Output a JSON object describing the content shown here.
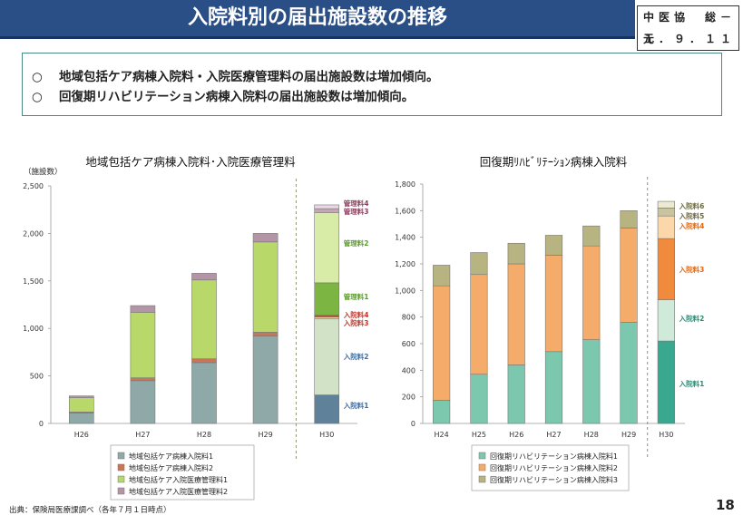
{
  "header": {
    "title": "入院料別の届出施設数の推移",
    "doc_id_line1": "中医協　総－１",
    "doc_id_line2": "元．９．１１"
  },
  "summary": {
    "bullet": "○",
    "items": [
      "地域包括ケア病棟入院料・入院医療管理料の届出施設数は増加傾向。",
      "回復期リハビリテーション病棟入院料の届出施設数は増加傾向。"
    ]
  },
  "footer": {
    "source": "出典：保険局医療課調べ（各年７月１日時点）",
    "page_number": "18"
  },
  "chart_data": [
    {
      "type": "bar",
      "stacked": true,
      "title": "地域包括ケア病棟入院料･入院医療管理料",
      "ylabel": "（施設数）",
      "ylim": [
        0,
        2500
      ],
      "yticks": [
        0,
        500,
        1000,
        1500,
        2000,
        2500
      ],
      "ytick_labels": [
        "0",
        "500",
        "1,000",
        "1,500",
        "2,000",
        "2,500"
      ],
      "categories": [
        "H26",
        "H27",
        "H28",
        "H29",
        "H30"
      ],
      "series": [
        {
          "name": "地域包括ケア病棟入院料1",
          "color": "#8fa9a8",
          "values": [
            110,
            450,
            640,
            920,
            0
          ]
        },
        {
          "name": "地域包括ケア病棟入院料2",
          "color": "#c8765a",
          "values": [
            10,
            30,
            40,
            40,
            0
          ]
        },
        {
          "name": "地域包括ケア入院医療管理料1",
          "color": "#b8d86a",
          "values": [
            150,
            690,
            830,
            950,
            0
          ]
        },
        {
          "name": "地域包括ケア入院医療管理料2",
          "color": "#b495a5",
          "values": [
            20,
            70,
            70,
            90,
            0
          ]
        }
      ],
      "h30_series": [
        {
          "name": "入院料1",
          "color": "#5f8199",
          "value": 300
        },
        {
          "name": "入院料2",
          "color": "#d2e2c7",
          "value": 800
        },
        {
          "name": "入院料3",
          "color": "#f0cba5",
          "value": 20
        },
        {
          "name": "入院料4",
          "color": "#a55a45",
          "value": 20
        },
        {
          "name": "管理料1",
          "color": "#7db542",
          "value": 340
        },
        {
          "name": "管理料2",
          "color": "#d8eca8",
          "value": 740
        },
        {
          "name": "管理料3",
          "color": "#c9a4b7",
          "value": 40
        },
        {
          "name": "管理料4",
          "color": "#e7d8e1",
          "value": 40
        }
      ],
      "h30_label_colors": {
        "入院料": "#3f6ea0",
        "入院料4": "#c0392b",
        "入院料3": "#c0392b",
        "管理料": "#5b9b2c",
        "管理料4": "#8c3b5e",
        "管理料3": "#8c3b5e"
      },
      "legend": [
        "地域包括ケア病棟入院料1",
        "地域包括ケア病棟入院料2",
        "地域包括ケア入院医療管理料1",
        "地域包括ケア入院医療管理料2"
      ]
    },
    {
      "type": "bar",
      "stacked": true,
      "title": "回復期ﾘﾊﾋﾞﾘﾃｰｼｮﾝ病棟入院料",
      "ylim": [
        0,
        1800
      ],
      "yticks": [
        0,
        200,
        400,
        600,
        800,
        1000,
        1200,
        1400,
        1600,
        1800
      ],
      "ytick_labels": [
        "0",
        "200",
        "400",
        "600",
        "800",
        "1,000",
        "1,200",
        "1,400",
        "1,600",
        "1,800"
      ],
      "categories": [
        "H24",
        "H25",
        "H26",
        "H27",
        "H28",
        "H29",
        "H30"
      ],
      "series": [
        {
          "name": "回復期リハビリテーション病棟入院料1",
          "color": "#7cc8ae",
          "values": [
            175,
            370,
            440,
            540,
            630,
            760,
            0
          ]
        },
        {
          "name": "回復期リハビリテーション病棟入院料2",
          "color": "#f5ac6a",
          "values": [
            860,
            750,
            760,
            725,
            705,
            710,
            0
          ]
        },
        {
          "name": "回復期リハビリテーション病棟入院料3",
          "color": "#b8b482",
          "values": [
            155,
            165,
            155,
            150,
            150,
            130,
            0
          ]
        }
      ],
      "h30_series": [
        {
          "name": "入院料1",
          "color": "#3aa78f",
          "value": 620
        },
        {
          "name": "入院料2",
          "color": "#cfead9",
          "value": 310
        },
        {
          "name": "入院料3",
          "color": "#f08a3c",
          "value": 460
        },
        {
          "name": "入院料4",
          "color": "#fbd7a9",
          "value": 170
        },
        {
          "name": "入院料5",
          "color": "#c8c49e",
          "value": 60
        },
        {
          "name": "入院料6",
          "color": "#ece8d2",
          "value": 50
        }
      ],
      "h30_label_colors": {
        "入院料1": "#2e8b74",
        "入院料2": "#2e8b74",
        "入院料3": "#e06a17",
        "入院料4": "#e06a17",
        "入院料5": "#6e6a40",
        "入院料6": "#6e6a40"
      },
      "legend": [
        "回復期リハビリテーション病棟入院料1",
        "回復期リハビリテーション病棟入院料2",
        "回復期リハビリテーション病棟入院料3"
      ]
    }
  ]
}
